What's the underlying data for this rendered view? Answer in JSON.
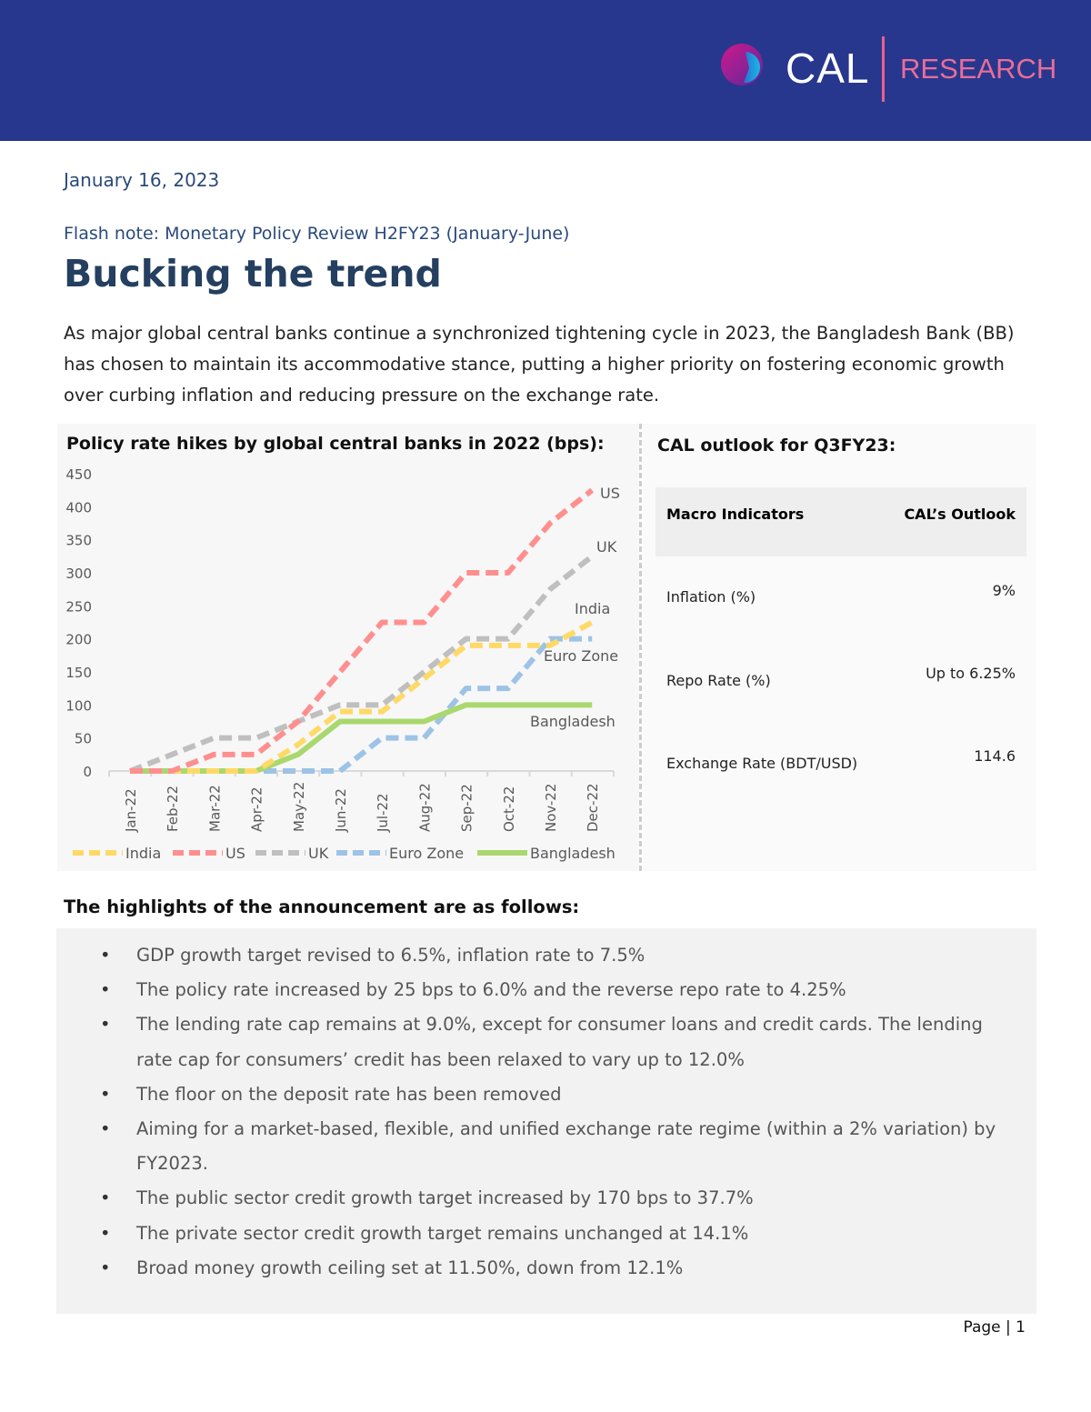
{
  "header": {
    "logo_text": "CAL",
    "logo_sub": "RESEARCH",
    "bg_color": "#27378e",
    "accent_color": "#ea6d98"
  },
  "date": "January 16, 2023",
  "flash_note": "Flash note: Monetary Policy Review H2FY23 (January-June)",
  "title": "Bucking the trend",
  "intro": "As major global central banks continue a synchronized tightening cycle in 2023, the Bangladesh Bank (BB) has chosen to maintain its accommodative stance, putting a higher priority on fostering economic growth over curbing inflation and reducing pressure on the exchange rate.",
  "chart_title": "Policy rate hikes by global central banks in 2022 (bps):",
  "chart_data": {
    "type": "line",
    "categories": [
      "Jan-22",
      "Feb-22",
      "Mar-22",
      "Apr-22",
      "May-22",
      "Jun-22",
      "Jul-22",
      "Aug-22",
      "Sep-22",
      "Oct-22",
      "Nov-22",
      "Dec-22"
    ],
    "ylim": [
      0,
      450
    ],
    "yticks": [
      0,
      50,
      100,
      150,
      200,
      250,
      300,
      350,
      400,
      450
    ],
    "grid": false,
    "legend": "bottom",
    "series": [
      {
        "name": "India",
        "color": "#ffd966",
        "dashed": true,
        "values": [
          0,
          0,
          0,
          0,
          40,
          90,
          90,
          140,
          190,
          190,
          190,
          225
        ]
      },
      {
        "name": "US",
        "color": "#ff8f8f",
        "dashed": true,
        "values": [
          0,
          0,
          25,
          25,
          75,
          150,
          225,
          225,
          300,
          300,
          375,
          425
        ]
      },
      {
        "name": "UK",
        "color": "#bfbfbf",
        "dashed": true,
        "values": [
          0,
          25,
          50,
          50,
          75,
          100,
          100,
          150,
          200,
          200,
          275,
          325
        ]
      },
      {
        "name": "Euro Zone",
        "color": "#9dc3e6",
        "dashed": true,
        "values": [
          0,
          0,
          0,
          0,
          0,
          0,
          50,
          50,
          125,
          125,
          200,
          200
        ]
      },
      {
        "name": "Bangladesh",
        "color": "#a9d86e",
        "dashed": false,
        "values": [
          0,
          0,
          0,
          0,
          25,
          75,
          75,
          75,
          100,
          100,
          100,
          100
        ]
      }
    ]
  },
  "outlook": {
    "title": "CAL outlook for Q3FY23:",
    "headers": [
      "Macro Indicators",
      "CAL’s Outlook"
    ],
    "rows": [
      {
        "label": "Inflation (%)",
        "value": "9%"
      },
      {
        "label": "Repo Rate (%)",
        "value": "Up to 6.25%"
      },
      {
        "label": "Exchange Rate (BDT/USD)",
        "value": "114.6"
      }
    ]
  },
  "highlights": {
    "title": "The highlights of the announcement are as follows:",
    "items": [
      "GDP growth target revised to 6.5%, inflation rate to 7.5%",
      "The policy rate increased by 25 bps to 6.0% and the reverse repo rate to 4.25%",
      "The lending rate cap remains at 9.0%, except for consumer loans and credit cards. The lending rate cap for consumers’ credit has been relaxed to vary up to 12.0%",
      "The floor on the deposit rate has been removed",
      "Aiming for a market-based, flexible, and unified exchange rate regime (within a 2% variation) by FY2023.",
      "The public sector credit growth target increased by 170 bps to 37.7%",
      "The private sector credit growth target remains unchanged at 14.1%",
      "Broad money growth ceiling set at 11.50%, down from 12.1%"
    ]
  },
  "footer": {
    "page": "Page | 1"
  }
}
